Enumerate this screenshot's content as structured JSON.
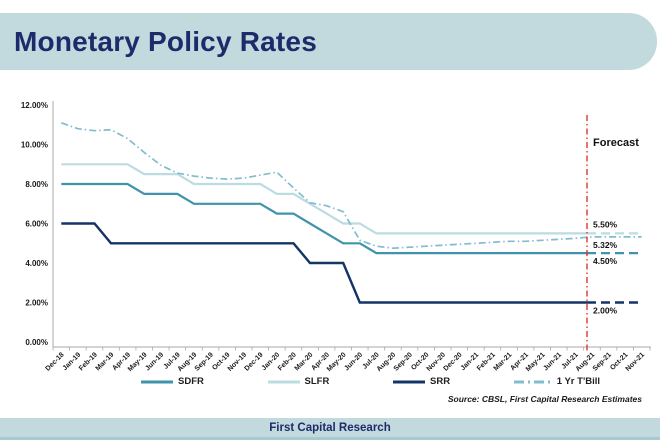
{
  "banner": {
    "title": "Monetary Policy Rates"
  },
  "footer": {
    "text": "First Capital Research"
  },
  "source_note": "Source: CBSL, First Capital Research Estimates",
  "colors": {
    "banner_bg": "#c2dadd",
    "title_text": "#1d2b6a",
    "axis": "#a8a8a8",
    "forecast_line": "#e0261c",
    "sdfr": "#3f93aa",
    "slfr": "#bcdce2",
    "srr": "#143467",
    "tbill": "#82bccf"
  },
  "chart_data": {
    "type": "line",
    "title": "Monetary Policy Rates",
    "xlabel": "",
    "ylabel": "",
    "ylim": [
      0,
      12
    ],
    "grid": false,
    "legend_position": "bottom",
    "y_ticks": [
      "12.00%",
      "10.00%",
      "8.00%",
      "6.00%",
      "4.00%",
      "2.00%",
      "0.00%"
    ],
    "categories": [
      "Dec-18",
      "Jan-19",
      "Feb-19",
      "Mar-19",
      "Apr-19",
      "May-19",
      "Jun-19",
      "Jul-19",
      "Aug-19",
      "Sep-19",
      "Oct-19",
      "Nov-19",
      "Dec-19",
      "Jan-20",
      "Feb-20",
      "Mar-20",
      "Apr-20",
      "May-20",
      "Jun-20",
      "Jul-20",
      "Aug-20",
      "Sep-20",
      "Oct-20",
      "Nov-20",
      "Dec-20",
      "Jan-21",
      "Feb-21",
      "Mar-21",
      "Apr-21",
      "May-21",
      "Jun-21",
      "Jul-21",
      "Aug-21",
      "Sep-21",
      "Oct-21",
      "Nov-21"
    ],
    "forecast": {
      "label": "Forecast",
      "start_index": 32
    },
    "series": [
      {
        "name": "SDFR",
        "color": "#3f93aa",
        "style": "solid",
        "end_label": "4.50%",
        "end_label_side": "below",
        "values": [
          8.0,
          8.0,
          8.0,
          8.0,
          8.0,
          7.5,
          7.5,
          7.5,
          7.0,
          7.0,
          7.0,
          7.0,
          7.0,
          6.5,
          6.5,
          6.0,
          5.5,
          5.0,
          5.0,
          4.5,
          4.5,
          4.5,
          4.5,
          4.5,
          4.5,
          4.5,
          4.5,
          4.5,
          4.5,
          4.5,
          4.5,
          4.5,
          4.5,
          4.5,
          4.5,
          4.5
        ]
      },
      {
        "name": "SLFR",
        "color": "#bcdce2",
        "style": "solid",
        "end_label": "5.50%",
        "end_label_side": "above",
        "values": [
          9.0,
          9.0,
          9.0,
          9.0,
          9.0,
          8.5,
          8.5,
          8.5,
          8.0,
          8.0,
          8.0,
          8.0,
          8.0,
          7.5,
          7.5,
          7.0,
          6.5,
          6.0,
          6.0,
          5.5,
          5.5,
          5.5,
          5.5,
          5.5,
          5.5,
          5.5,
          5.5,
          5.5,
          5.5,
          5.5,
          5.5,
          5.5,
          5.5,
          5.5,
          5.5,
          5.5
        ]
      },
      {
        "name": "SRR",
        "color": "#143467",
        "style": "solid",
        "end_label": "2.00%",
        "end_label_side": "below",
        "values": [
          6.0,
          6.0,
          6.0,
          5.0,
          5.0,
          5.0,
          5.0,
          5.0,
          5.0,
          5.0,
          5.0,
          5.0,
          5.0,
          5.0,
          5.0,
          4.0,
          4.0,
          4.0,
          2.0,
          2.0,
          2.0,
          2.0,
          2.0,
          2.0,
          2.0,
          2.0,
          2.0,
          2.0,
          2.0,
          2.0,
          2.0,
          2.0,
          2.0,
          2.0,
          2.0,
          2.0
        ]
      },
      {
        "name": "1 Yr T'Bill",
        "color": "#82bccf",
        "style": "dashdot",
        "end_label": "5.32%",
        "end_label_side": "below",
        "values": [
          11.1,
          10.8,
          10.7,
          10.75,
          10.3,
          9.6,
          8.95,
          8.55,
          8.4,
          8.3,
          8.25,
          8.3,
          8.45,
          8.6,
          7.8,
          7.05,
          6.9,
          6.6,
          5.15,
          4.85,
          4.75,
          4.8,
          4.85,
          4.9,
          4.95,
          5.0,
          5.05,
          5.1,
          5.1,
          5.15,
          5.2,
          5.25,
          5.32,
          5.32,
          5.32,
          5.32
        ]
      }
    ]
  }
}
